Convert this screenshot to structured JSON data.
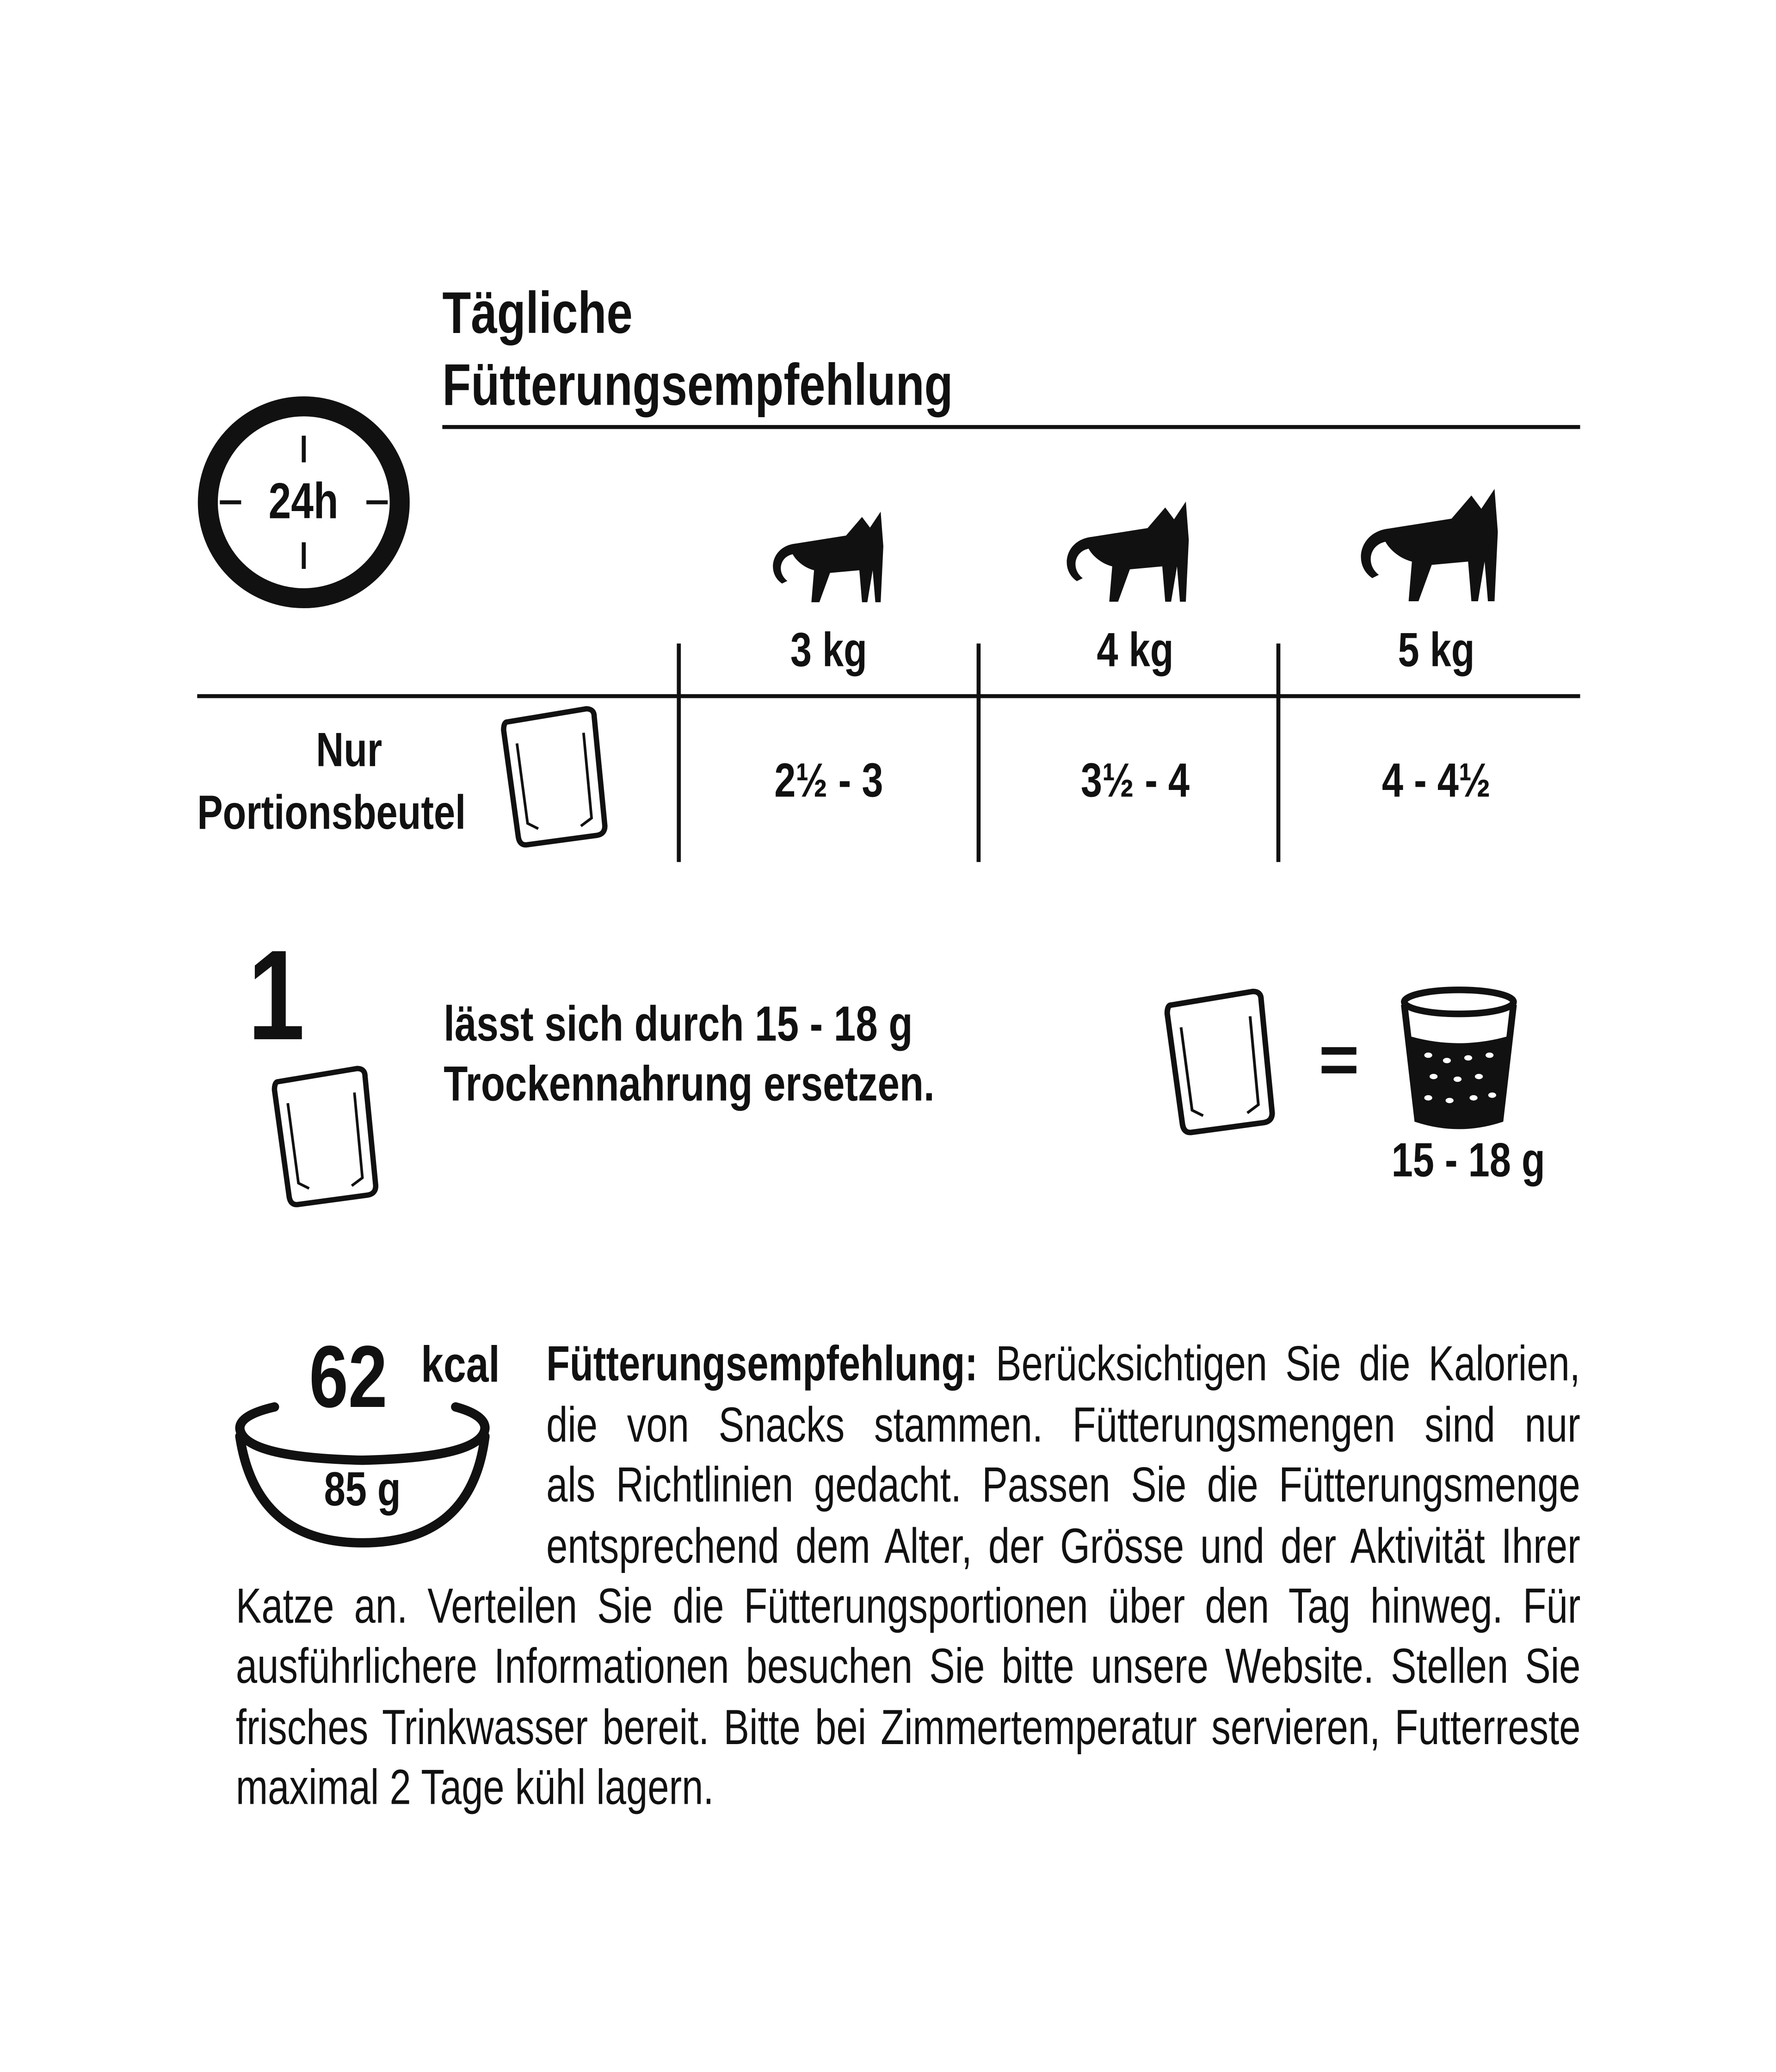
{
  "header": {
    "title_line1": "Tägliche",
    "title_line2": "Fütterungsempfehlung"
  },
  "clock": {
    "label": "24h",
    "icon": "clock-24h-icon"
  },
  "table": {
    "columns": [
      {
        "weight": "3 kg",
        "icon": "cat-icon"
      },
      {
        "weight": "4 kg",
        "icon": "cat-icon"
      },
      {
        "weight": "5 kg",
        "icon": "cat-icon"
      }
    ],
    "row_label_line1": "Nur",
    "row_label_line2": "Portionsbeutel",
    "row_icon": "pouch-icon",
    "values": [
      "2½ - 3",
      "3½ - 4",
      "4 - 4½"
    ]
  },
  "replacement": {
    "number": "1",
    "text_line1": "lässt sich durch 15 - 18 g",
    "text_line2": "Trockennahrung ersetzen.",
    "equals": "=",
    "cup_amount": "15 - 18 g",
    "icons": [
      "pouch-icon",
      "dry-food-cup-icon"
    ]
  },
  "energy": {
    "kcal_value": "62",
    "kcal_unit": "kcal",
    "weight": "85 g",
    "icon": "bowl-icon"
  },
  "paragraph": {
    "lead": "Fütterungsempfehlung:",
    "first_line_rest": "Berücksichtigen Sie die Kalorien,",
    "lines": [
      "die von Snacks stammen. Fütterungsmengen sind nur",
      "als Richtlinien gedacht. Passen Sie die Fütterungsmenge",
      "entsprechend dem Alter, der Grösse und der Aktivität Ihrer",
      "Katze an. Verteilen Sie die Fütterungsportionen über den Tag hinweg. Für",
      "ausführlichere Informationen besuchen Sie bitte unsere Website. Stellen Sie",
      "frisches Trinkwasser bereit. Bitte bei Zimmertemperatur servieren, Futterreste",
      "maximal 2 Tage kühl lagern."
    ]
  },
  "colors": {
    "ink": "#111111",
    "background": "#ffffff"
  }
}
